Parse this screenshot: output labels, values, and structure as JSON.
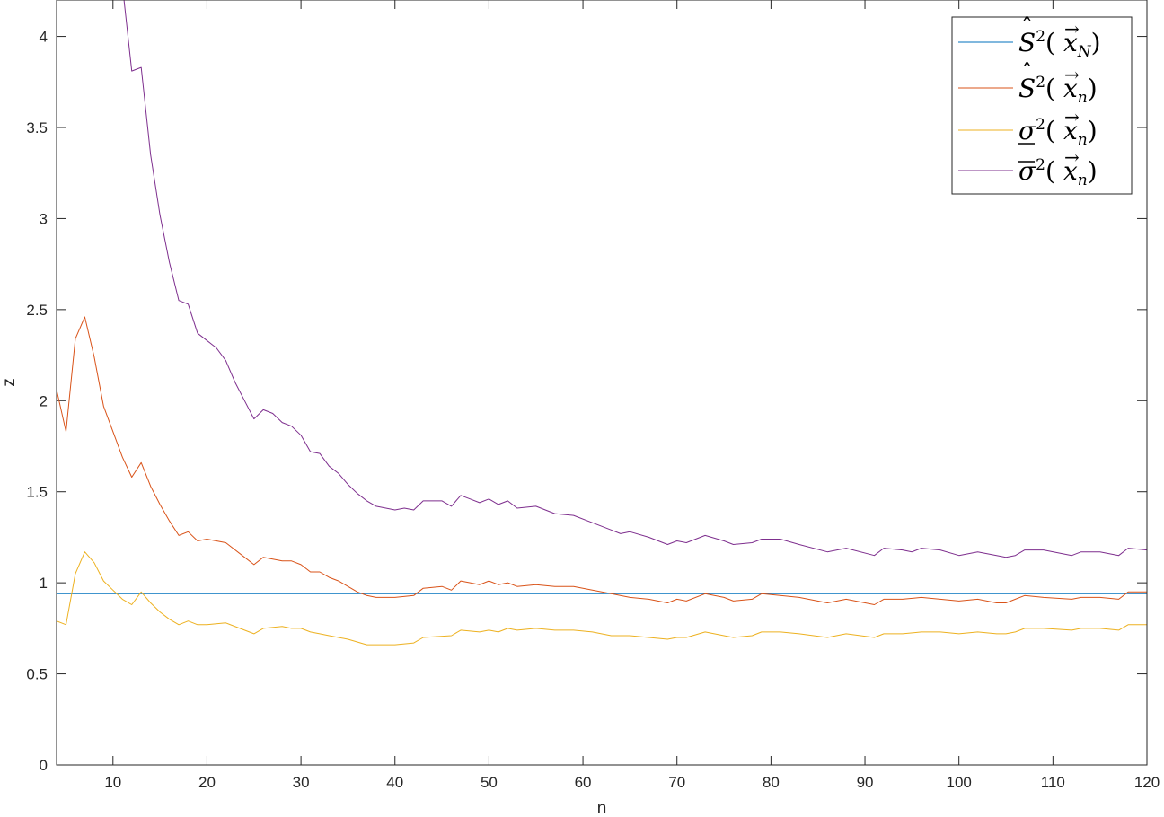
{
  "chart_data": {
    "type": "line",
    "xlabel": "n",
    "ylabel": "z",
    "xlim": [
      4,
      120
    ],
    "ylim": [
      0,
      4.2
    ],
    "xticks": [
      10,
      20,
      30,
      40,
      50,
      60,
      70,
      80,
      90,
      100,
      110,
      120
    ],
    "yticks": [
      0,
      0.5,
      1,
      1.5,
      2,
      2.5,
      3,
      3.5,
      4
    ],
    "xtick_labels": [
      "10",
      "20",
      "30",
      "40",
      "50",
      "60",
      "70",
      "80",
      "90",
      "100",
      "110",
      "120"
    ],
    "ytick_labels": [
      "0",
      "0.5",
      "1",
      "1.5",
      "2",
      "2.5",
      "3",
      "3.5",
      "4"
    ],
    "grid": false,
    "legend_position": "top-right",
    "series": [
      {
        "name": "Ŝ²(x⃗_N)",
        "color": "#0072BD",
        "points": [
          [
            4,
            0.94
          ],
          [
            120,
            0.94
          ]
        ]
      },
      {
        "name": "Ŝ²(x⃗_n)",
        "color": "#D95319",
        "points": [
          [
            4,
            2.06
          ],
          [
            5,
            1.83
          ],
          [
            6,
            2.34
          ],
          [
            7,
            2.46
          ],
          [
            8,
            2.24
          ],
          [
            9,
            1.97
          ],
          [
            10,
            1.83
          ],
          [
            11,
            1.69
          ],
          [
            12,
            1.58
          ],
          [
            13,
            1.66
          ],
          [
            14,
            1.53
          ],
          [
            15,
            1.43
          ],
          [
            16,
            1.34
          ],
          [
            17,
            1.26
          ],
          [
            18,
            1.28
          ],
          [
            19,
            1.23
          ],
          [
            20,
            1.24
          ],
          [
            22,
            1.22
          ],
          [
            24,
            1.14
          ],
          [
            25,
            1.1
          ],
          [
            26,
            1.14
          ],
          [
            27,
            1.13
          ],
          [
            28,
            1.12
          ],
          [
            29,
            1.12
          ],
          [
            30,
            1.1
          ],
          [
            31,
            1.06
          ],
          [
            32,
            1.06
          ],
          [
            33,
            1.03
          ],
          [
            34,
            1.01
          ],
          [
            35,
            0.98
          ],
          [
            36,
            0.95
          ],
          [
            37,
            0.93
          ],
          [
            38,
            0.92
          ],
          [
            40,
            0.92
          ],
          [
            42,
            0.93
          ],
          [
            43,
            0.97
          ],
          [
            45,
            0.98
          ],
          [
            46,
            0.96
          ],
          [
            47,
            1.01
          ],
          [
            48,
            1.0
          ],
          [
            49,
            0.99
          ],
          [
            50,
            1.01
          ],
          [
            51,
            0.99
          ],
          [
            52,
            1.0
          ],
          [
            53,
            0.98
          ],
          [
            55,
            0.99
          ],
          [
            57,
            0.98
          ],
          [
            59,
            0.98
          ],
          [
            61,
            0.96
          ],
          [
            63,
            0.94
          ],
          [
            65,
            0.92
          ],
          [
            67,
            0.91
          ],
          [
            69,
            0.89
          ],
          [
            70,
            0.91
          ],
          [
            71,
            0.9
          ],
          [
            73,
            0.94
          ],
          [
            75,
            0.92
          ],
          [
            76,
            0.9
          ],
          [
            78,
            0.91
          ],
          [
            79,
            0.94
          ],
          [
            81,
            0.93
          ],
          [
            83,
            0.92
          ],
          [
            86,
            0.89
          ],
          [
            88,
            0.91
          ],
          [
            91,
            0.88
          ],
          [
            92,
            0.91
          ],
          [
            94,
            0.91
          ],
          [
            96,
            0.92
          ],
          [
            98,
            0.91
          ],
          [
            100,
            0.9
          ],
          [
            102,
            0.91
          ],
          [
            104,
            0.89
          ],
          [
            105,
            0.89
          ],
          [
            106,
            0.91
          ],
          [
            107,
            0.93
          ],
          [
            109,
            0.92
          ],
          [
            112,
            0.91
          ],
          [
            113,
            0.92
          ],
          [
            115,
            0.92
          ],
          [
            117,
            0.91
          ],
          [
            118,
            0.95
          ],
          [
            120,
            0.95
          ]
        ]
      },
      {
        "name": "σ̲²(x⃗_n)",
        "color": "#EDB120",
        "points": [
          [
            4,
            0.79
          ],
          [
            5,
            0.77
          ],
          [
            6,
            1.05
          ],
          [
            7,
            1.17
          ],
          [
            8,
            1.11
          ],
          [
            9,
            1.01
          ],
          [
            10,
            0.96
          ],
          [
            11,
            0.91
          ],
          [
            12,
            0.88
          ],
          [
            13,
            0.95
          ],
          [
            14,
            0.89
          ],
          [
            15,
            0.84
          ],
          [
            16,
            0.8
          ],
          [
            17,
            0.77
          ],
          [
            18,
            0.79
          ],
          [
            19,
            0.77
          ],
          [
            20,
            0.77
          ],
          [
            22,
            0.78
          ],
          [
            24,
            0.74
          ],
          [
            25,
            0.72
          ],
          [
            26,
            0.75
          ],
          [
            28,
            0.76
          ],
          [
            29,
            0.75
          ],
          [
            30,
            0.75
          ],
          [
            31,
            0.73
          ],
          [
            32,
            0.72
          ],
          [
            33,
            0.71
          ],
          [
            35,
            0.69
          ],
          [
            37,
            0.66
          ],
          [
            40,
            0.66
          ],
          [
            42,
            0.67
          ],
          [
            43,
            0.7
          ],
          [
            46,
            0.71
          ],
          [
            47,
            0.74
          ],
          [
            49,
            0.73
          ],
          [
            50,
            0.74
          ],
          [
            51,
            0.73
          ],
          [
            52,
            0.75
          ],
          [
            53,
            0.74
          ],
          [
            55,
            0.75
          ],
          [
            57,
            0.74
          ],
          [
            59,
            0.74
          ],
          [
            61,
            0.73
          ],
          [
            63,
            0.71
          ],
          [
            65,
            0.71
          ],
          [
            67,
            0.7
          ],
          [
            69,
            0.69
          ],
          [
            70,
            0.7
          ],
          [
            71,
            0.7
          ],
          [
            73,
            0.73
          ],
          [
            75,
            0.71
          ],
          [
            76,
            0.7
          ],
          [
            78,
            0.71
          ],
          [
            79,
            0.73
          ],
          [
            81,
            0.73
          ],
          [
            83,
            0.72
          ],
          [
            86,
            0.7
          ],
          [
            88,
            0.72
          ],
          [
            91,
            0.7
          ],
          [
            92,
            0.72
          ],
          [
            94,
            0.72
          ],
          [
            96,
            0.73
          ],
          [
            98,
            0.73
          ],
          [
            100,
            0.72
          ],
          [
            102,
            0.73
          ],
          [
            104,
            0.72
          ],
          [
            105,
            0.72
          ],
          [
            106,
            0.73
          ],
          [
            107,
            0.75
          ],
          [
            109,
            0.75
          ],
          [
            112,
            0.74
          ],
          [
            113,
            0.75
          ],
          [
            115,
            0.75
          ],
          [
            117,
            0.74
          ],
          [
            118,
            0.77
          ],
          [
            120,
            0.77
          ]
        ]
      },
      {
        "name": "σ̄²(x⃗_n)",
        "color": "#7E2F8E",
        "points": [
          [
            11,
            4.28
          ],
          [
            12,
            3.81
          ],
          [
            13,
            3.83
          ],
          [
            14,
            3.35
          ],
          [
            15,
            3.02
          ],
          [
            16,
            2.76
          ],
          [
            17,
            2.55
          ],
          [
            18,
            2.53
          ],
          [
            19,
            2.37
          ],
          [
            20,
            2.33
          ],
          [
            21,
            2.29
          ],
          [
            22,
            2.22
          ],
          [
            23,
            2.1
          ],
          [
            24,
            2.0
          ],
          [
            25,
            1.9
          ],
          [
            26,
            1.95
          ],
          [
            27,
            1.93
          ],
          [
            28,
            1.88
          ],
          [
            29,
            1.86
          ],
          [
            30,
            1.81
          ],
          [
            31,
            1.72
          ],
          [
            32,
            1.71
          ],
          [
            33,
            1.64
          ],
          [
            34,
            1.6
          ],
          [
            35,
            1.54
          ],
          [
            36,
            1.49
          ],
          [
            37,
            1.45
          ],
          [
            38,
            1.42
          ],
          [
            40,
            1.4
          ],
          [
            41,
            1.41
          ],
          [
            42,
            1.4
          ],
          [
            43,
            1.45
          ],
          [
            45,
            1.45
          ],
          [
            46,
            1.42
          ],
          [
            47,
            1.48
          ],
          [
            48,
            1.46
          ],
          [
            49,
            1.44
          ],
          [
            50,
            1.46
          ],
          [
            51,
            1.43
          ],
          [
            52,
            1.45
          ],
          [
            53,
            1.41
          ],
          [
            55,
            1.42
          ],
          [
            57,
            1.38
          ],
          [
            59,
            1.37
          ],
          [
            61,
            1.33
          ],
          [
            63,
            1.29
          ],
          [
            64,
            1.27
          ],
          [
            65,
            1.28
          ],
          [
            67,
            1.25
          ],
          [
            69,
            1.21
          ],
          [
            70,
            1.23
          ],
          [
            71,
            1.22
          ],
          [
            73,
            1.26
          ],
          [
            75,
            1.23
          ],
          [
            76,
            1.21
          ],
          [
            78,
            1.22
          ],
          [
            79,
            1.24
          ],
          [
            81,
            1.24
          ],
          [
            83,
            1.21
          ],
          [
            86,
            1.17
          ],
          [
            88,
            1.19
          ],
          [
            91,
            1.15
          ],
          [
            92,
            1.19
          ],
          [
            94,
            1.18
          ],
          [
            95,
            1.17
          ],
          [
            96,
            1.19
          ],
          [
            98,
            1.18
          ],
          [
            100,
            1.15
          ],
          [
            102,
            1.17
          ],
          [
            104,
            1.15
          ],
          [
            105,
            1.14
          ],
          [
            106,
            1.15
          ],
          [
            107,
            1.18
          ],
          [
            109,
            1.18
          ],
          [
            112,
            1.15
          ],
          [
            113,
            1.17
          ],
          [
            115,
            1.17
          ],
          [
            117,
            1.15
          ],
          [
            118,
            1.19
          ],
          [
            120,
            1.18
          ]
        ]
      }
    ]
  }
}
